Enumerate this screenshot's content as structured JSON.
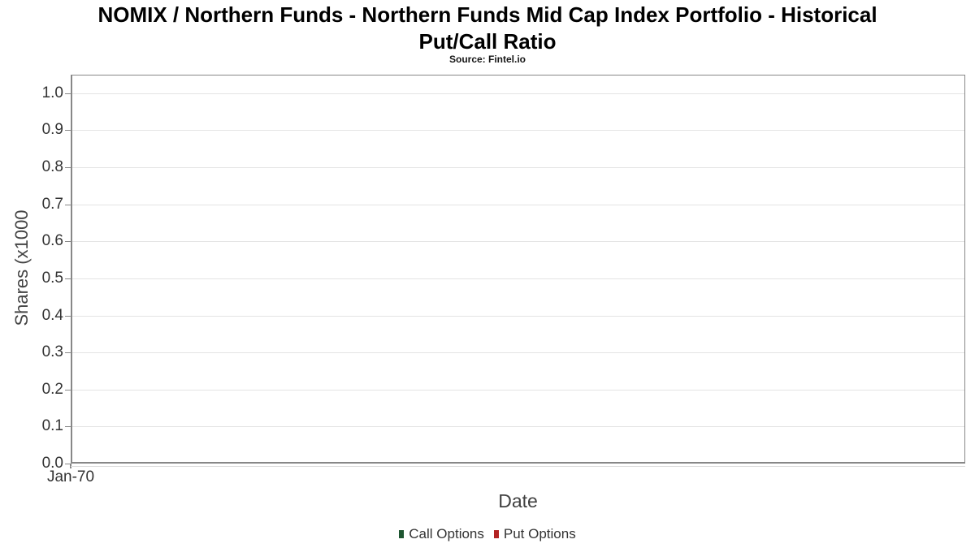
{
  "chart_data": {
    "type": "line",
    "title": "NOMIX / Northern Funds - Northern Funds Mid Cap Index Portfolio - Historical Put/Call Ratio",
    "title_lines": [
      "NOMIX / Northern Funds - Northern Funds Mid Cap Index Portfolio - Historical",
      "Put/Call Ratio"
    ],
    "subtitle": "Source: Fintel.io",
    "xlabel": "Date",
    "ylabel": "Shares (x1000",
    "ylim": [
      0.0,
      1.05
    ],
    "ytick_values": [
      0.0,
      0.1,
      0.2,
      0.3,
      0.4,
      0.5,
      0.6,
      0.7,
      0.8,
      0.9,
      1.0
    ],
    "ytick_labels": [
      "0.0",
      "0.1",
      "0.2",
      "0.3",
      "0.4",
      "0.5",
      "0.6",
      "0.7",
      "0.8",
      "0.9",
      "1.0"
    ],
    "xtick_labels": [
      "Jan-70"
    ],
    "grid": "horizontal",
    "legend_position": "bottom-center",
    "series": [
      {
        "name": "Call Options",
        "color": "#1e5631",
        "values": []
      },
      {
        "name": "Put Options",
        "color": "#b22222",
        "values": []
      }
    ],
    "colors": {
      "axis_border": "#878787",
      "gridline": "#e4e4e4",
      "tick_text": "#333333",
      "axis_title_text": "#404040",
      "title_text": "#000000",
      "background": "#ffffff"
    }
  }
}
